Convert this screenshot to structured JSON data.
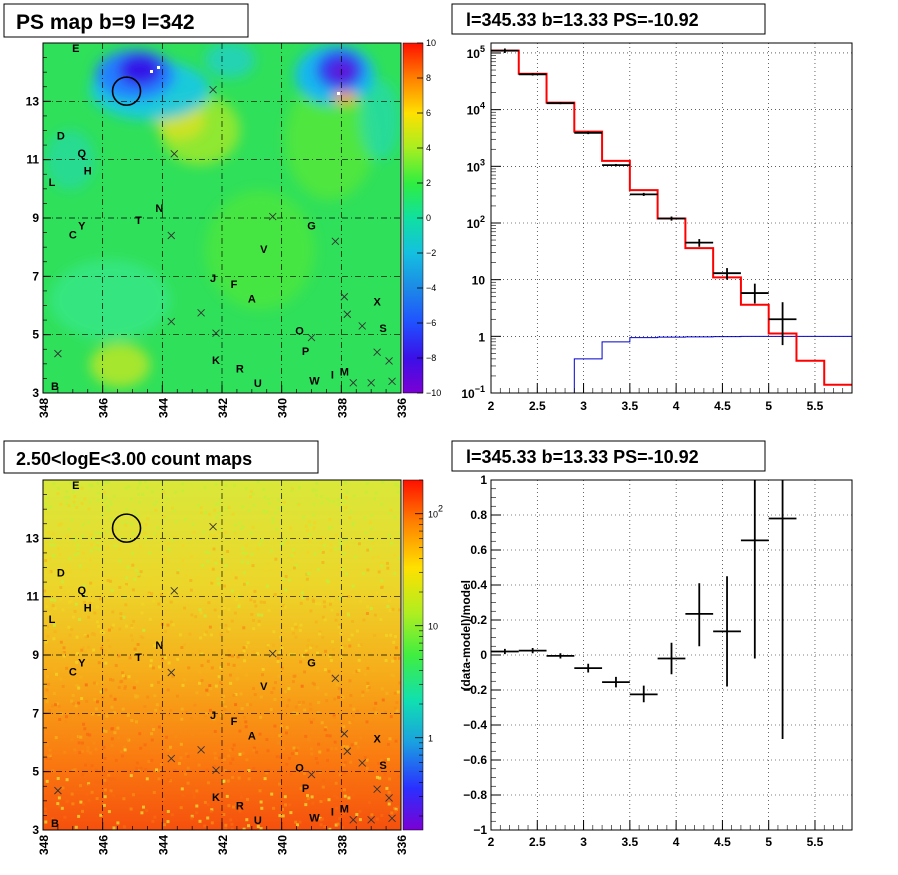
{
  "chart_data": [
    {
      "type": "heatmap",
      "title": "PS map b=9 l=342",
      "x_ticks": [
        "348",
        "346",
        "344",
        "342",
        "340",
        "338",
        "336"
      ],
      "y_ticks": [
        "3",
        "5",
        "7",
        "9",
        "11",
        "13"
      ],
      "xlim": [
        348,
        336
      ],
      "ylim": [
        3,
        15
      ],
      "colorbar_ticks": [
        "10",
        "8",
        "6",
        "4",
        "2",
        "0",
        "−2",
        "−4",
        "−6",
        "−8",
        "−10"
      ],
      "colorbar_range": [
        -10,
        10
      ],
      "marked_position": {
        "l": 345.2,
        "b": 13.35
      },
      "source_labels": [
        {
          "t": "E",
          "l": 346.9,
          "b": 14.7
        },
        {
          "t": "D",
          "l": 347.4,
          "b": 11.7
        },
        {
          "t": "Q",
          "l": 346.7,
          "b": 11.1
        },
        {
          "t": "H",
          "l": 346.5,
          "b": 10.5
        },
        {
          "t": "L",
          "l": 347.7,
          "b": 10.1
        },
        {
          "t": "N",
          "l": 344.1,
          "b": 9.2
        },
        {
          "t": "T",
          "l": 344.8,
          "b": 8.8
        },
        {
          "t": "Y",
          "l": 346.7,
          "b": 8.6
        },
        {
          "t": "C",
          "l": 347.0,
          "b": 8.3
        },
        {
          "t": "G",
          "l": 339.0,
          "b": 8.6
        },
        {
          "t": "V",
          "l": 340.6,
          "b": 7.8
        },
        {
          "t": "J",
          "l": 342.3,
          "b": 6.8
        },
        {
          "t": "F",
          "l": 341.6,
          "b": 6.6
        },
        {
          "t": "A",
          "l": 341.0,
          "b": 6.1
        },
        {
          "t": "X",
          "l": 336.8,
          "b": 6.0
        },
        {
          "t": "O",
          "l": 339.4,
          "b": 5.0
        },
        {
          "t": "S",
          "l": 336.6,
          "b": 5.1
        },
        {
          "t": "P",
          "l": 339.2,
          "b": 4.3
        },
        {
          "t": "K",
          "l": 342.2,
          "b": 4.0
        },
        {
          "t": "R",
          "l": 341.4,
          "b": 3.7
        },
        {
          "t": "M",
          "l": 337.9,
          "b": 3.6
        },
        {
          "t": "I",
          "l": 338.3,
          "b": 3.5
        },
        {
          "t": "W",
          "l": 338.9,
          "b": 3.3
        },
        {
          "t": "U",
          "l": 340.8,
          "b": 3.2
        },
        {
          "t": "B",
          "l": 347.6,
          "b": 3.1
        }
      ],
      "cross_markers": [
        {
          "l": 342.3,
          "b": 13.4
        },
        {
          "l": 343.6,
          "b": 11.2
        },
        {
          "l": 340.3,
          "b": 9.05
        },
        {
          "l": 343.7,
          "b": 8.4
        },
        {
          "l": 338.2,
          "b": 8.2
        },
        {
          "l": 342.7,
          "b": 5.75
        },
        {
          "l": 342.2,
          "b": 5.05
        },
        {
          "l": 343.7,
          "b": 5.45
        },
        {
          "l": 337.9,
          "b": 6.3
        },
        {
          "l": 337.8,
          "b": 5.7
        },
        {
          "l": 339.0,
          "b": 4.9
        },
        {
          "l": 337.3,
          "b": 5.3
        },
        {
          "l": 336.8,
          "b": 4.4
        },
        {
          "l": 336.4,
          "b": 4.1
        },
        {
          "l": 337.6,
          "b": 3.35
        },
        {
          "l": 337.0,
          "b": 3.35
        },
        {
          "l": 336.3,
          "b": 3.4
        },
        {
          "l": 347.5,
          "b": 4.35
        }
      ]
    },
    {
      "type": "line",
      "title": "l=345.33 b=13.33 PS=-10.92",
      "yscale": "log",
      "xlim": [
        2,
        5.9
      ],
      "ylim": [
        0.1,
        150000
      ],
      "x_ticks": [
        "2",
        "2.5",
        "3",
        "3.5",
        "4",
        "4.5",
        "5",
        "5.5"
      ],
      "y_ticks": [
        {
          "v": 100000,
          "m": "10",
          "e": "5"
        },
        {
          "v": 10000,
          "m": "10",
          "e": "4"
        },
        {
          "v": 1000,
          "m": "10",
          "e": "3"
        },
        {
          "v": 100,
          "m": "10",
          "e": "2"
        },
        {
          "v": 10,
          "m": "10",
          "e": ""
        },
        {
          "v": 1,
          "m": "1",
          "e": ""
        },
        {
          "v": 0.1,
          "m": "10",
          "e": "−1"
        }
      ],
      "bin_edges": [
        2.0,
        2.3,
        2.6,
        2.9,
        3.2,
        3.5,
        3.8,
        4.1,
        4.4,
        4.7,
        5.0,
        5.3,
        5.6,
        5.9
      ],
      "series": [
        {
          "kind": "data",
          "color": "#000000",
          "x": [
            2.15,
            2.45,
            2.75,
            3.05,
            3.35,
            3.65,
            3.95,
            4.25,
            4.55,
            4.85,
            5.15
          ],
          "y": [
            110000,
            42000,
            13000,
            3900,
            1050,
            320,
            120,
            45,
            13,
            5.8,
            2
          ],
          "ylow": [
            100000,
            40000,
            12500,
            3700,
            1000,
            300,
            110,
            38,
            10,
            3.8,
            0.7
          ],
          "yhigh": [
            120000,
            44000,
            13500,
            4100,
            1100,
            340,
            130,
            52,
            16,
            8.5,
            4
          ]
        },
        {
          "kind": "model",
          "color": "#ff0000",
          "y": [
            110000,
            43000,
            13300,
            4100,
            1250,
            380,
            120,
            36,
            11,
            3.6,
            1.12,
            0.37,
            0.14
          ]
        },
        {
          "kind": "ps_component",
          "color": "#0000cc",
          "y": [
            null,
            null,
            0.1,
            0.4,
            0.8,
            0.95,
            0.97,
            0.98,
            0.99,
            1.0,
            1.0,
            1.0,
            1.0
          ]
        }
      ]
    },
    {
      "type": "heatmap",
      "title": "2.50<logE<3.00 count maps",
      "x_ticks": [
        "348",
        "346",
        "344",
        "342",
        "340",
        "338",
        "336"
      ],
      "y_ticks": [
        "3",
        "5",
        "7",
        "9",
        "11",
        "13"
      ],
      "xlim": [
        348,
        336
      ],
      "ylim": [
        3,
        15
      ],
      "colorbar_scale": "log",
      "colorbar_ticks": [
        {
          "v": 100,
          "m": "10",
          "e": "2"
        },
        {
          "v": 10,
          "m": "10",
          "e": ""
        },
        {
          "v": 1,
          "m": "1",
          "e": ""
        }
      ],
      "colorbar_range": [
        0.15,
        200
      ]
    },
    {
      "type": "scatter",
      "title": "l=345.33 b=13.33 PS=-10.92",
      "ylabel": "(data-model)/model",
      "xlim": [
        2,
        5.9
      ],
      "ylim": [
        -1,
        1
      ],
      "x_ticks": [
        "2",
        "2.5",
        "3",
        "3.5",
        "4",
        "4.5",
        "5",
        "5.5"
      ],
      "y_ticks": [
        "1",
        "0.8",
        "0.6",
        "0.4",
        "0.2",
        "0",
        "−0.2",
        "−0.4",
        "−0.6",
        "−0.8",
        "−1"
      ],
      "points": [
        {
          "x": 2.15,
          "y": 0.02,
          "xerr": 0.15,
          "ylow": 0.005,
          "yhigh": 0.035
        },
        {
          "x": 2.45,
          "y": 0.025,
          "xerr": 0.15,
          "ylow": 0.01,
          "yhigh": 0.04
        },
        {
          "x": 2.75,
          "y": -0.005,
          "xerr": 0.15,
          "ylow": -0.02,
          "yhigh": 0.01
        },
        {
          "x": 3.05,
          "y": -0.075,
          "xerr": 0.15,
          "ylow": -0.1,
          "yhigh": -0.05
        },
        {
          "x": 3.35,
          "y": -0.155,
          "xerr": 0.15,
          "ylow": -0.185,
          "yhigh": -0.125
        },
        {
          "x": 3.65,
          "y": -0.225,
          "xerr": 0.15,
          "ylow": -0.27,
          "yhigh": -0.175
        },
        {
          "x": 3.95,
          "y": -0.02,
          "xerr": 0.15,
          "ylow": -0.11,
          "yhigh": 0.07
        },
        {
          "x": 4.25,
          "y": 0.235,
          "xerr": 0.15,
          "ylow": 0.05,
          "yhigh": 0.41
        },
        {
          "x": 4.55,
          "y": 0.135,
          "xerr": 0.15,
          "ylow": -0.18,
          "yhigh": 0.45
        },
        {
          "x": 4.85,
          "y": 0.655,
          "xerr": 0.15,
          "ylow": -0.02,
          "yhigh": 1.0
        },
        {
          "x": 5.15,
          "y": 0.78,
          "xerr": 0.15,
          "ylow": -0.48,
          "yhigh": 1.0
        }
      ]
    }
  ]
}
